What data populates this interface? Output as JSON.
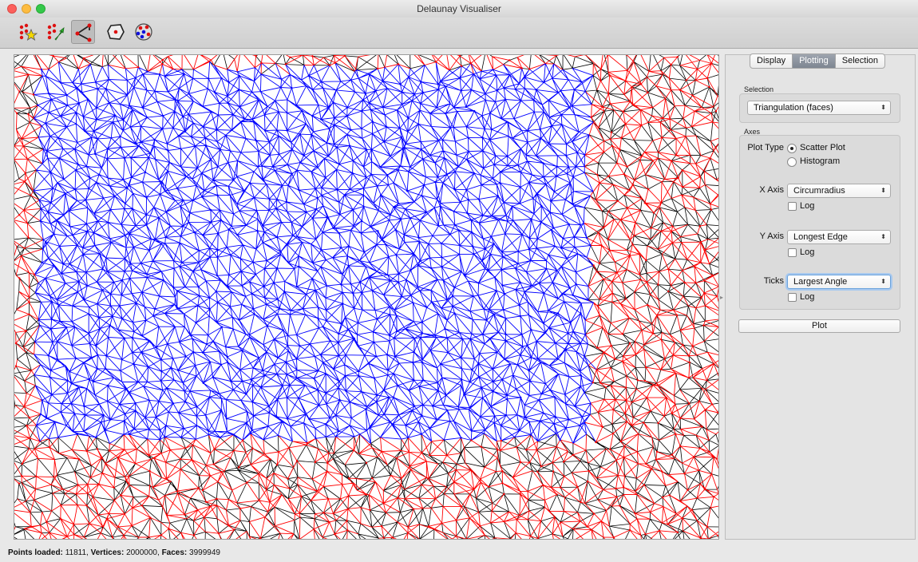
{
  "window": {
    "title": "Delaunay Visualiser"
  },
  "toolbar": {
    "tools": [
      {
        "icon": "scatter-star-icon",
        "label": ""
      },
      {
        "icon": "scatter-arrow-icon",
        "label": ""
      },
      {
        "icon": "triangle-edges-icon",
        "label": ""
      },
      {
        "icon": "voronoi-cell-icon",
        "label": ""
      },
      {
        "icon": "colored-points-icon",
        "label": ""
      }
    ],
    "active_tool_index": 2
  },
  "tabs": [
    "Display",
    "Plotting",
    "Selection"
  ],
  "selected_tab": "Plotting",
  "selection_group": {
    "title": "Selection",
    "value": "Triangulation (faces)"
  },
  "axes_group": {
    "title": "Axes",
    "plot_type_label": "Plot Type",
    "plot_types": [
      "Scatter Plot",
      "Histogram"
    ],
    "selected_plot_type": "Scatter Plot",
    "x_axis_label": "X Axis",
    "x_axis_value": "Circumradius",
    "y_axis_label": "Y Axis",
    "y_axis_value": "Longest Edge",
    "ticks_label": "Ticks",
    "ticks_value": "Largest Angle",
    "log_label": "Log",
    "x_log": false,
    "y_log": false,
    "ticks_log": false
  },
  "plot_button": "Plot",
  "status": {
    "points_label": "Points loaded:",
    "points_value": "11811",
    "vertices_label": "Vertices:",
    "vertices_value": "2000000",
    "faces_label": "Faces:",
    "faces_value": "3999949"
  },
  "colors": {
    "selected_region": "#0000ff",
    "outer_region": "#ff0000",
    "edges": "#000000"
  }
}
